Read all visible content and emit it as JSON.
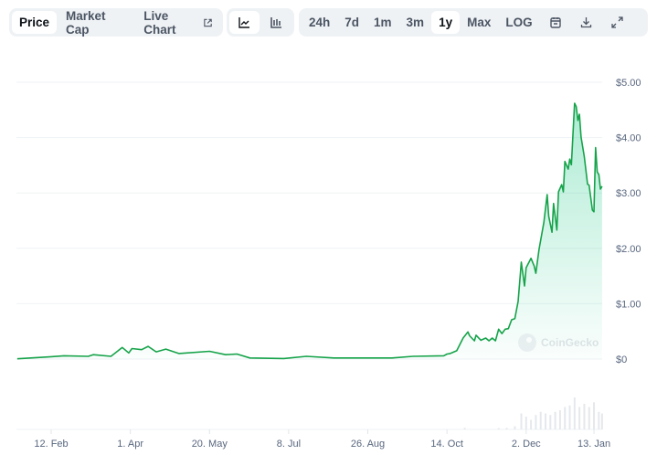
{
  "toolbar": {
    "view_tabs": [
      {
        "label": "Price",
        "active": true
      },
      {
        "label": "Market Cap",
        "active": false
      },
      {
        "label": "Live Chart",
        "active": false,
        "icon": "external-link-icon"
      }
    ],
    "chart_types": [
      {
        "icon": "line-chart-icon",
        "active": true
      },
      {
        "icon": "candlestick-chart-icon",
        "active": false
      }
    ],
    "ranges": [
      {
        "label": "24h",
        "active": false
      },
      {
        "label": "7d",
        "active": false
      },
      {
        "label": "1m",
        "active": false
      },
      {
        "label": "3m",
        "active": false
      },
      {
        "label": "1y",
        "active": true
      },
      {
        "label": "Max",
        "active": false
      },
      {
        "label": "LOG",
        "active": false
      }
    ],
    "tools": [
      "calendar-icon",
      "download-icon",
      "expand-icon"
    ]
  },
  "watermark": "CoinGecko",
  "colors": {
    "line": "#16a34a",
    "fill": "#16c784",
    "grid": "#eff2f5",
    "volume": "#e5e8ec"
  },
  "chart_data": {
    "type": "area",
    "title": "",
    "xlabel": "",
    "ylabel": "",
    "y_ticks": [
      "$0",
      "$1.00",
      "$2.00",
      "$3.00",
      "$4.00",
      "$5.00"
    ],
    "ylim": [
      0,
      5
    ],
    "y_axis_position": "right",
    "x_ticks": [
      "12. Feb",
      "1. Apr",
      "20. May",
      "8. Jul",
      "26. Aug",
      "14. Oct",
      "2. Dec",
      "13. Jan"
    ],
    "x_tick_dates": [
      "2024-02-12",
      "2024-04-01",
      "2024-05-20",
      "2024-07-08",
      "2024-08-26",
      "2024-10-14",
      "2024-12-02",
      "2025-01-13"
    ],
    "grid": true,
    "series": [
      {
        "x": [
          "2024-01-22",
          "2024-02-11",
          "2024-02-20",
          "2024-03-06",
          "2024-03-09",
          "2024-03-20",
          "2024-03-27",
          "2024-03-31",
          "2024-04-02",
          "2024-04-08",
          "2024-04-12",
          "2024-04-17",
          "2024-04-23",
          "2024-05-01",
          "2024-05-20",
          "2024-05-30",
          "2024-06-06",
          "2024-06-14",
          "2024-07-05",
          "2024-07-19",
          "2024-08-05",
          "2024-09-10",
          "2024-09-23",
          "2024-10-12",
          "2024-10-14",
          "2024-10-16",
          "2024-10-20",
          "2024-10-24",
          "2024-10-27",
          "2024-10-28",
          "2024-10-31",
          "2024-11-01",
          "2024-11-04",
          "2024-11-07",
          "2024-11-09",
          "2024-11-11",
          "2024-11-13",
          "2024-11-15",
          "2024-11-17",
          "2024-11-19",
          "2024-11-21",
          "2024-11-23",
          "2024-11-25",
          "2024-11-27",
          "2024-11-29",
          "2024-12-01",
          "2024-12-02",
          "2024-12-05",
          "2024-12-07",
          "2024-12-08",
          "2024-12-10",
          "2024-12-13",
          "2024-12-15",
          "2024-12-16",
          "2024-12-18",
          "2024-12-19",
          "2024-12-21",
          "2024-12-22",
          "2024-12-24",
          "2024-12-25",
          "2024-12-26",
          "2024-12-28",
          "2024-12-29",
          "2024-12-30",
          "2025-01-01",
          "2025-01-02",
          "2025-01-03",
          "2025-01-04",
          "2025-01-05",
          "2025-01-07",
          "2025-01-09",
          "2025-01-10",
          "2025-01-12",
          "2025-01-13",
          "2025-01-14",
          "2025-01-15",
          "2025-01-16",
          "2025-01-17",
          "2025-01-18"
        ],
        "y": [
          0.005,
          0.04,
          0.06,
          0.05,
          0.08,
          0.05,
          0.21,
          0.11,
          0.19,
          0.17,
          0.23,
          0.13,
          0.18,
          0.1,
          0.14,
          0.08,
          0.09,
          0.02,
          0.01,
          0.05,
          0.02,
          0.02,
          0.05,
          0.06,
          0.09,
          0.1,
          0.15,
          0.38,
          0.49,
          0.42,
          0.33,
          0.43,
          0.34,
          0.38,
          0.33,
          0.38,
          0.33,
          0.54,
          0.46,
          0.54,
          0.55,
          0.71,
          0.73,
          1.04,
          1.75,
          1.32,
          1.65,
          1.82,
          1.68,
          1.55,
          1.98,
          2.47,
          2.97,
          2.58,
          2.29,
          2.81,
          2.33,
          3.02,
          3.15,
          3.02,
          3.57,
          3.43,
          3.61,
          3.51,
          4.62,
          4.56,
          4.31,
          4.42,
          4.01,
          3.66,
          3.16,
          3.14,
          2.69,
          2.66,
          3.82,
          3.38,
          3.33,
          3.07,
          3.12
        ]
      }
    ],
    "volume_relative": {
      "x": [
        "2024-10-25",
        "2024-11-15",
        "2024-11-20",
        "2024-11-25",
        "2024-11-29",
        "2024-12-02",
        "2024-12-05",
        "2024-12-08",
        "2024-12-11",
        "2024-12-14",
        "2024-12-17",
        "2024-12-20",
        "2024-12-23",
        "2024-12-26",
        "2024-12-29",
        "2025-01-01",
        "2025-01-04",
        "2025-01-07",
        "2025-01-10",
        "2025-01-13",
        "2025-01-16",
        "2025-01-18"
      ],
      "y": [
        0.05,
        0.04,
        0.05,
        0.1,
        0.5,
        0.4,
        0.3,
        0.45,
        0.55,
        0.5,
        0.45,
        0.55,
        0.6,
        0.7,
        0.75,
        1.0,
        0.7,
        0.8,
        0.7,
        0.85,
        0.55,
        0.5
      ]
    }
  }
}
